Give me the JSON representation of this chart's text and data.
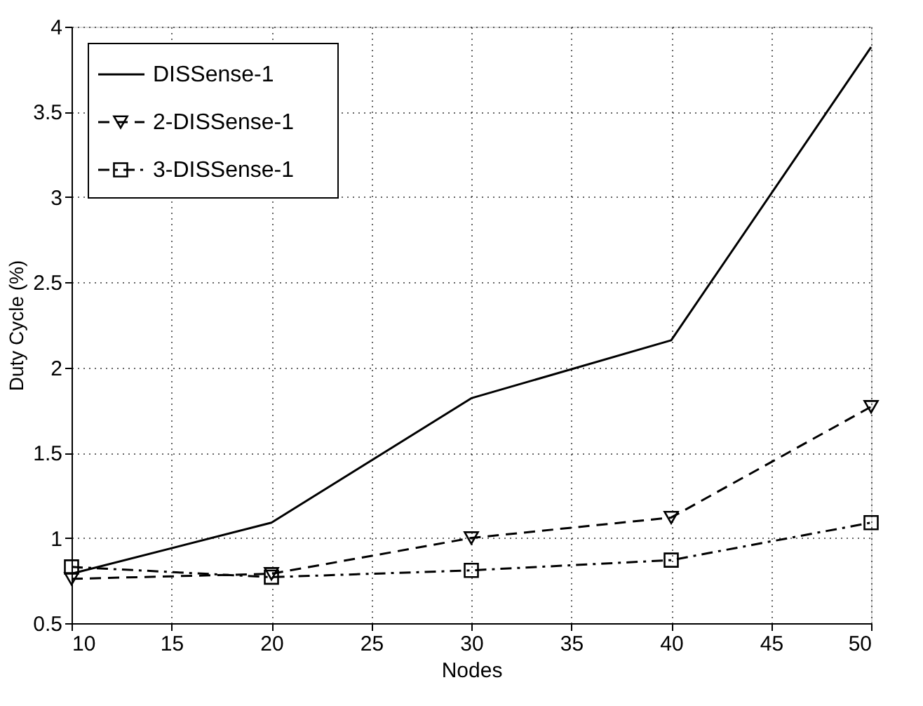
{
  "chart_data": {
    "type": "line",
    "xlabel": "Nodes",
    "ylabel": "Duty Cycle (%)",
    "x": [
      10,
      20,
      30,
      40,
      50
    ],
    "series": [
      {
        "name": "DISSense-1",
        "color": "#000000",
        "values": [
          0.79,
          1.09,
          1.82,
          2.16,
          3.88
        ],
        "marker": "none",
        "line_style": "solid"
      },
      {
        "name": "2-DISSense-1",
        "color": "#000000",
        "values": [
          0.76,
          0.79,
          1.0,
          1.12,
          1.77
        ],
        "marker": "triangle",
        "line_style": "dashed"
      },
      {
        "name": "3-DISSense-1",
        "color": "#000000",
        "values": [
          0.83,
          0.77,
          0.81,
          0.87,
          1.09
        ],
        "marker": "square",
        "line_style": "dashdot"
      }
    ],
    "xlim": [
      10,
      50
    ],
    "xticks": [
      10,
      15,
      20,
      25,
      30,
      35,
      40,
      45,
      50
    ],
    "ylim": [
      0.5,
      4
    ],
    "yticks": [
      0.5,
      1,
      1.5,
      2,
      2.5,
      3,
      3.5,
      4
    ],
    "grid": true,
    "legend": "top left"
  }
}
